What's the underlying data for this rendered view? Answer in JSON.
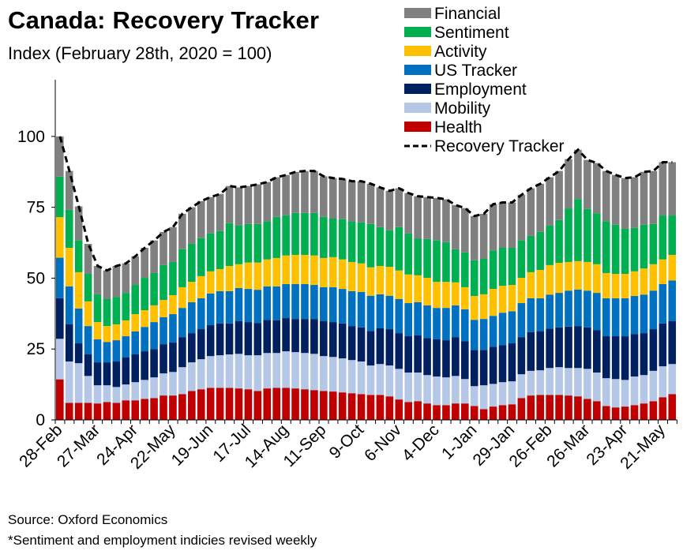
{
  "chart_data": {
    "type": "bar",
    "stacked": true,
    "title": "Canada: Recovery Tracker",
    "subtitle": "Index (February 28th, 2020 = 100)",
    "ylim": [
      0,
      120
    ],
    "y_ticks": [
      0,
      25,
      50,
      75,
      100
    ],
    "x_tick_labels": [
      "28-Feb",
      "27-Mar",
      "24-Apr",
      "22-May",
      "19-Jun",
      "17-Jul",
      "14-Aug",
      "11-Sep",
      "9-Oct",
      "6-Nov",
      "4-Dec",
      "1-Jan",
      "29-Jan",
      "26-Feb",
      "26-Mar",
      "23-Apr",
      "21-May"
    ],
    "legend_position": "top-right",
    "grid": false,
    "series": [
      {
        "name": "Health",
        "color": "#C00000",
        "values": [
          14.3,
          6.0,
          6.0,
          6.0,
          5.8,
          6.3,
          6.0,
          6.9,
          6.9,
          7.4,
          7.7,
          8.6,
          8.6,
          9.1,
          10.2,
          10.8,
          11.3,
          11.3,
          11.3,
          11.1,
          10.8,
          10.2,
          11.1,
          11.3,
          11.3,
          11.1,
          10.8,
          10.5,
          10.2,
          10.0,
          9.7,
          9.4,
          9.1,
          8.8,
          8.8,
          8.3,
          7.2,
          6.3,
          6.6,
          5.8,
          5.2,
          5.2,
          5.8,
          5.8,
          4.9,
          3.8,
          4.7,
          5.2,
          5.5,
          7.7,
          8.6,
          8.8,
          8.8,
          8.8,
          8.6,
          8.3,
          7.4,
          6.6,
          4.9,
          4.4,
          4.7,
          5.2,
          5.8,
          6.6,
          8.0,
          9.1
        ]
      },
      {
        "name": "Mobility",
        "color": "#B4C7E7",
        "values": [
          14.3,
          14.6,
          14.0,
          9.5,
          6.4,
          5.9,
          5.6,
          5.6,
          6.4,
          6.7,
          7.3,
          7.8,
          8.3,
          9.5,
          10.1,
          10.6,
          11.2,
          11.5,
          11.8,
          12.2,
          12.0,
          12.6,
          12.5,
          12.3,
          12.9,
          12.8,
          12.8,
          12.8,
          12.3,
          12.2,
          12.0,
          11.7,
          11.5,
          10.4,
          10.9,
          10.9,
          10.8,
          10.4,
          10.1,
          10.0,
          10.1,
          9.8,
          9.7,
          8.6,
          7.0,
          8.4,
          8.0,
          8.1,
          8.1,
          8.4,
          8.7,
          8.7,
          9.5,
          9.8,
          9.7,
          10.0,
          10.6,
          10.1,
          9.8,
          10.0,
          9.4,
          10.1,
          10.0,
          10.7,
          10.9,
          10.6
        ]
      },
      {
        "name": "Employment",
        "color": "#002060",
        "values": [
          14.3,
          13.1,
          7.0,
          7.6,
          8.1,
          8.1,
          9.0,
          9.5,
          9.8,
          10.1,
          10.0,
          10.3,
          10.4,
          10.6,
          10.3,
          10.6,
          10.9,
          11.2,
          10.9,
          11.5,
          11.7,
          11.4,
          11.7,
          11.5,
          11.7,
          11.7,
          12.0,
          12.3,
          12.3,
          12.3,
          12.3,
          12.0,
          12.0,
          12.2,
          12.6,
          12.8,
          12.6,
          12.8,
          13.1,
          13.1,
          13.1,
          13.1,
          13.7,
          13.4,
          12.8,
          12.5,
          13.1,
          13.1,
          13.4,
          13.1,
          13.7,
          13.8,
          13.9,
          14.0,
          14.6,
          14.8,
          14.6,
          14.9,
          14.8,
          15.1,
          15.4,
          15.0,
          14.8,
          14.7,
          15.1,
          15.1
        ]
      },
      {
        "name": "US Tracker",
        "color": "#0070C0",
        "values": [
          14.3,
          13.4,
          12.3,
          10.0,
          8.1,
          7.2,
          7.5,
          7.5,
          8.1,
          8.6,
          9.5,
          9.5,
          10.0,
          10.3,
          10.9,
          10.9,
          11.2,
          11.4,
          11.4,
          11.7,
          11.7,
          11.7,
          11.8,
          12.0,
          12.0,
          12.3,
          12.3,
          12.0,
          12.0,
          12.3,
          12.2,
          12.3,
          12.5,
          12.4,
          12.0,
          11.8,
          12.0,
          11.7,
          11.7,
          11.5,
          11.1,
          11.4,
          11.2,
          11.2,
          10.6,
          10.9,
          10.9,
          11.4,
          11.3,
          12.0,
          11.9,
          11.6,
          12.0,
          12.2,
          12.7,
          12.9,
          13.0,
          13.2,
          13.4,
          13.4,
          13.4,
          13.4,
          13.6,
          13.6,
          13.9,
          14.4
        ]
      },
      {
        "name": "Activity",
        "color": "#FFC000",
        "values": [
          14.3,
          13.6,
          12.8,
          8.7,
          6.1,
          5.6,
          5.6,
          5.6,
          6.1,
          5.9,
          5.9,
          6.1,
          6.7,
          7.3,
          7.2,
          7.8,
          7.8,
          7.8,
          8.9,
          8.4,
          9.3,
          9.6,
          9.5,
          10.0,
          10.1,
          10.3,
          10.3,
          10.4,
          10.3,
          10.6,
          10.4,
          10.3,
          10.1,
          10.0,
          10.0,
          10.2,
          10.1,
          10.1,
          9.5,
          9.7,
          9.2,
          9.2,
          8.1,
          7.8,
          8.4,
          8.7,
          9.5,
          9.5,
          9.3,
          8.9,
          9.2,
          10.0,
          10.4,
          10.6,
          10.1,
          10.0,
          10.1,
          10.1,
          8.9,
          8.6,
          8.6,
          8.7,
          9.2,
          9.3,
          8.7,
          9.0
        ]
      },
      {
        "name": "Sentiment",
        "color": "#00B050",
        "values": [
          14.3,
          13.4,
          11.2,
          9.7,
          9.8,
          9.5,
          9.7,
          9.7,
          10.3,
          11.4,
          11.4,
          12.3,
          11.7,
          13.4,
          13.4,
          13.4,
          13.4,
          13.4,
          15.1,
          13.7,
          13.6,
          13.6,
          13.4,
          14.5,
          14.2,
          14.8,
          14.8,
          15.0,
          14.5,
          13.6,
          14.2,
          14.3,
          14.5,
          15.3,
          13.7,
          12.9,
          15.3,
          14.5,
          12.9,
          13.7,
          14.6,
          14.0,
          11.7,
          12.3,
          12.6,
          12.5,
          13.6,
          13.4,
          13.1,
          13.2,
          12.8,
          13.4,
          14.0,
          15.1,
          18.9,
          21.9,
          18.7,
          18.0,
          18.2,
          17.3,
          15.9,
          15.3,
          15.4,
          14.2,
          15.5,
          13.9
        ]
      },
      {
        "name": "Financial",
        "color": "#808080",
        "values": [
          14.2,
          13.7,
          12.0,
          10.6,
          10.0,
          10.1,
          10.9,
          10.4,
          10.1,
          10.6,
          11.5,
          11.7,
          12.3,
          12.5,
          12.9,
          13.1,
          12.8,
          13.1,
          13.1,
          13.4,
          13.4,
          14.0,
          13.9,
          14.0,
          14.2,
          14.5,
          14.8,
          14.8,
          14.3,
          14.3,
          14.2,
          14.2,
          14.5,
          14.2,
          14.0,
          13.9,
          13.7,
          14.2,
          15.0,
          14.8,
          15.0,
          15.1,
          15.6,
          15.6,
          15.6,
          15.9,
          16.3,
          16.0,
          16.0,
          16.1,
          16.8,
          17.0,
          17.0,
          17.3,
          17.4,
          17.4,
          17.3,
          17.7,
          17.8,
          17.6,
          17.9,
          17.9,
          18.7,
          18.7,
          18.8,
          18.8
        ]
      }
    ],
    "line_series": {
      "name": "Recovery Tracker",
      "color": "#000000",
      "style": "dashed",
      "values": [
        100,
        87.8,
        75.3,
        62.1,
        54.3,
        52.7,
        54.3,
        55.2,
        57.7,
        60.7,
        63.3,
        66.3,
        68.0,
        72.7,
        75.0,
        77.2,
        78.6,
        79.7,
        82.5,
        82.0,
        82.5,
        83.1,
        83.9,
        85.6,
        86.4,
        87.5,
        87.8,
        87.8,
        85.9,
        85.3,
        85.0,
        84.2,
        84.2,
        83.3,
        82.0,
        80.8,
        81.7,
        80.0,
        78.9,
        78.6,
        78.3,
        77.8,
        75.8,
        74.7,
        71.9,
        72.7,
        76.1,
        76.7,
        76.7,
        79.4,
        81.7,
        83.3,
        85.6,
        87.8,
        92.0,
        95.3,
        91.7,
        90.6,
        87.8,
        86.4,
        85.3,
        85.6,
        87.5,
        87.8,
        90.9,
        90.9
      ]
    }
  },
  "footer": {
    "source": "Source: Oxford Economics",
    "note": "*Sentiment and employment  indicies revised weekly"
  }
}
